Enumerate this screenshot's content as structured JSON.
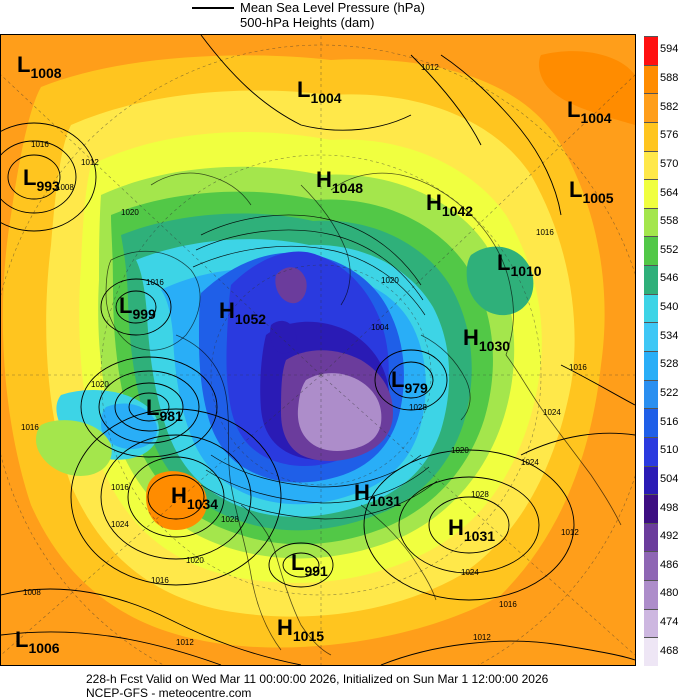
{
  "header": {
    "line1": "Mean Sea Level Pressure (hPa)",
    "line2": "500-hPa Heights (dam)"
  },
  "colorbar": {
    "levels": [
      "594",
      "588",
      "582",
      "576",
      "570",
      "564",
      "558",
      "552",
      "546",
      "540",
      "534",
      "528",
      "522",
      "516",
      "510",
      "504",
      "498",
      "492",
      "486",
      "480",
      "474",
      "468"
    ],
    "colors": [
      "#ff1010",
      "#ff8c00",
      "#ff9e1a",
      "#ffc51f",
      "#ffe84a",
      "#f0ff40",
      "#a4e64c",
      "#52c847",
      "#2fb07a",
      "#3dd4e6",
      "#3ec7f5",
      "#29aef7",
      "#2a8ff0",
      "#1f5fe8",
      "#2a3adf",
      "#2a1bb5",
      "#3d0e82",
      "#6b3c9c",
      "#8e66b4",
      "#ad8dca",
      "#cdb7e0",
      "#eee6f5"
    ]
  },
  "centers": [
    {
      "type": "L",
      "value": "1008"
    },
    {
      "type": "L",
      "value": "1004"
    },
    {
      "type": "L",
      "value": "1004"
    },
    {
      "type": "L",
      "value": "993"
    },
    {
      "type": "H",
      "value": "1048"
    },
    {
      "type": "H",
      "value": "1042"
    },
    {
      "type": "L",
      "value": "1005"
    },
    {
      "type": "L",
      "value": "1010"
    },
    {
      "type": "L",
      "value": "999"
    },
    {
      "type": "H",
      "value": "1052"
    },
    {
      "type": "H",
      "value": "1030"
    },
    {
      "type": "L",
      "value": "979"
    },
    {
      "type": "L",
      "value": "981"
    },
    {
      "type": "H",
      "value": "1034"
    },
    {
      "type": "H",
      "value": "1031"
    },
    {
      "type": "H",
      "value": "1031"
    },
    {
      "type": "L",
      "value": "991"
    },
    {
      "type": "H",
      "value": "1015"
    },
    {
      "type": "L",
      "value": "1006"
    }
  ],
  "isobar_labels": [
    "1012",
    "1016",
    "1008",
    "1012",
    "1020",
    "1016",
    "1016",
    "1020",
    "1024",
    "1028",
    "1024",
    "1020",
    "1016",
    "1012",
    "1028",
    "1024",
    "1020",
    "1016",
    "1012",
    "1004",
    "1020",
    "1024",
    "1016",
    "1012",
    "1008",
    "1028",
    "1016",
    "1016"
  ],
  "footer": {
    "line1": "228-h Fcst Valid on Wed Mar 11 00:00:00 2026, Initialized on Sun Mar  1 12:00:00 2026",
    "line2": "NCEP-GFS  -  meteocentre.com"
  }
}
